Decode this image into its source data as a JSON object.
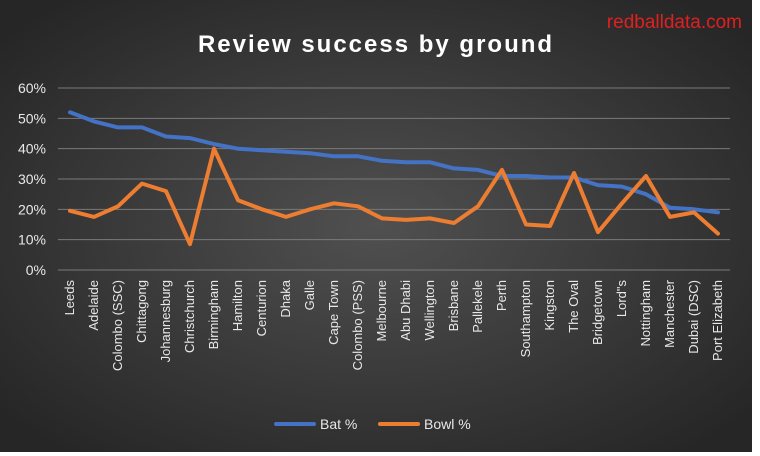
{
  "watermark": "redballdata.com",
  "colors": {
    "bg_outer": "#2a2a2a",
    "bg_inner": "#4a4a4a",
    "grid": "#7a7a7a",
    "text": "#e8e8e8",
    "title": "#ffffff",
    "bat": "#4472c4",
    "bowl": "#ed7d31",
    "watermark": "#e02020"
  },
  "chart_data": {
    "type": "line",
    "title": "Review success by ground",
    "xlabel": "",
    "ylabel": "",
    "ylim": [
      0,
      60
    ],
    "yticks": [
      "0%",
      "10%",
      "20%",
      "30%",
      "40%",
      "50%",
      "60%"
    ],
    "grid": true,
    "legend_position": "bottom",
    "categories": [
      "Leeds",
      "Adelaide",
      "Colombo (SSC)",
      "Chittagong",
      "Johannesburg",
      "Christchurch",
      "Birmingham",
      "Hamilton",
      "Centurion",
      "Dhaka",
      "Galle",
      "Cape Town",
      "Colombo (PSS)",
      "Melbourne",
      "Abu Dhabi",
      "Wellington",
      "Brisbane",
      "Pallekele",
      "Perth",
      "Southampton",
      "Kingston",
      "The Oval",
      "Bridgetown",
      "Lord\"s",
      "Nottingham",
      "Manchester",
      "Dubai (DSC)",
      "Port Elizabeth"
    ],
    "series": [
      {
        "name": "Bat %",
        "color": "#4472c4",
        "values": [
          52,
          49,
          47,
          47,
          44,
          43.5,
          41.5,
          40,
          39.5,
          39,
          38.5,
          37.5,
          37.5,
          36,
          35.5,
          35.5,
          33.5,
          33,
          31,
          31,
          30.5,
          30.5,
          28,
          27.5,
          25,
          20.5,
          20,
          19
        ]
      },
      {
        "name": "Bowl %",
        "color": "#ed7d31",
        "values": [
          19.5,
          17.5,
          21,
          28.5,
          26,
          8.5,
          40,
          23,
          20,
          17.5,
          20,
          22,
          21,
          17,
          16.5,
          17,
          15.5,
          21,
          33,
          15,
          14.5,
          32,
          12.5,
          22,
          31,
          17.5,
          19,
          12
        ]
      }
    ]
  }
}
